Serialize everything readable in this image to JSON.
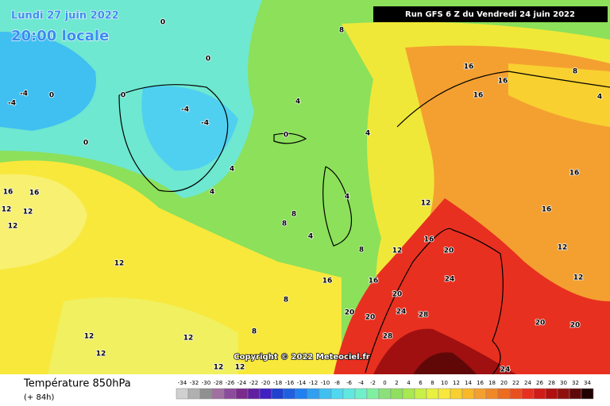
{
  "header": {
    "date": "Lundi 27 juin 2022",
    "time": "20:00 locale",
    "run": "Run GFS 6 Z du Vendredi 24 juin 2022"
  },
  "copyright": "Copyright © 2022 Meteociel.fr",
  "footer": {
    "title": "Température 850hPa",
    "lead": "(+ 84h)"
  },
  "map": {
    "labels": [
      0,
      0,
      0,
      0,
      -4,
      -4,
      -4,
      -4,
      0,
      0,
      8,
      4,
      4,
      4,
      4,
      4,
      4,
      8,
      8,
      8,
      8,
      8,
      16,
      16,
      16,
      16,
      16,
      16,
      16,
      16,
      16,
      16,
      12,
      12,
      12,
      12,
      12,
      12,
      12,
      12,
      12,
      12,
      12,
      12,
      12,
      20,
      20,
      20,
      20,
      20,
      20,
      24,
      24,
      28,
      28,
      24,
      8,
      4
    ]
  },
  "legend": {
    "ticks": [
      -34,
      -32,
      -30,
      -28,
      -26,
      -24,
      -22,
      -20,
      -18,
      -16,
      -14,
      -12,
      -10,
      -8,
      -6,
      -4,
      -2,
      0,
      2,
      4,
      6,
      8,
      10,
      12,
      14,
      16,
      18,
      20,
      22,
      24,
      26,
      28,
      30,
      32,
      34
    ],
    "colors": [
      "#d0d0d0",
      "#b0b0b0",
      "#909090",
      "#a070a0",
      "#8c4c9c",
      "#7a2c8c",
      "#6020a0",
      "#4020c0",
      "#2040d0",
      "#2060e0",
      "#2080f0",
      "#30a0f0",
      "#40c0f0",
      "#50d8f0",
      "#60e8e0",
      "#70f0c8",
      "#80f0a0",
      "#8ce07a",
      "#90e060",
      "#a8e850",
      "#c8f048",
      "#e8f040",
      "#f8e83c",
      "#f8d030",
      "#f8b828",
      "#f4a030",
      "#f08828",
      "#ec6c20",
      "#e85020",
      "#e83020",
      "#d01c18",
      "#b01010",
      "#901010",
      "#600808",
      "#200000"
    ]
  }
}
